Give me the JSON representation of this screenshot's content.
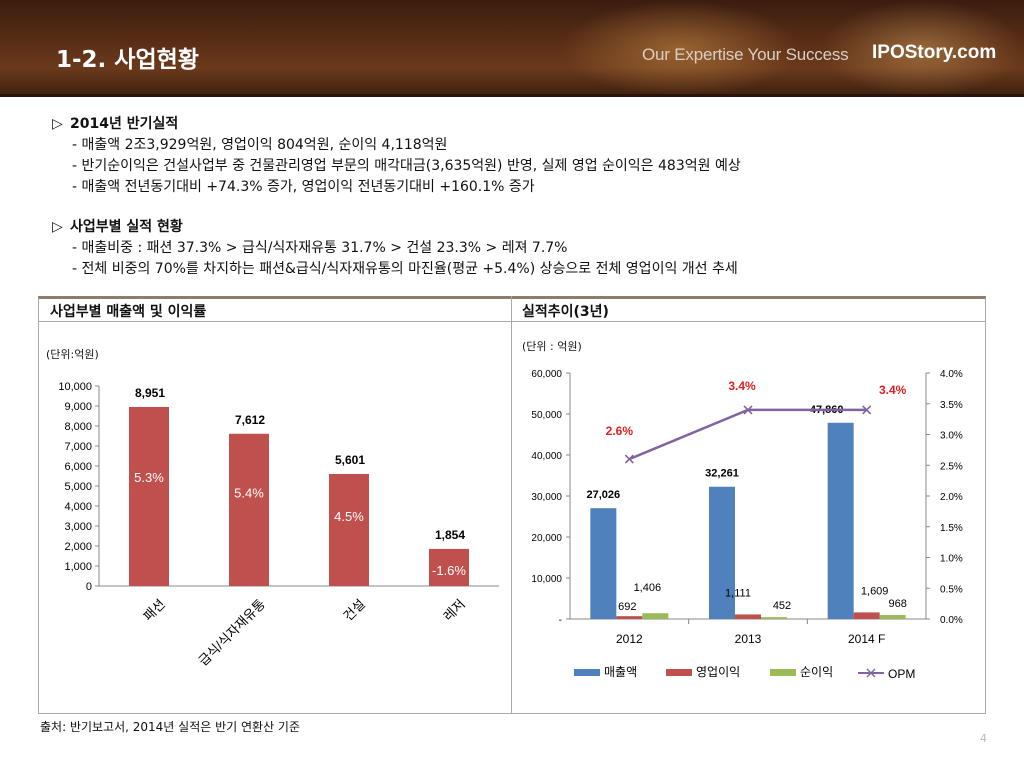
{
  "header": {
    "title": "1-2. 사업현황",
    "slogan": "Our Expertise Your Success",
    "brand": "IPOStory.com"
  },
  "section1": {
    "marker": "▷",
    "heading": "2014년 반기실적",
    "lines": [
      "- 매출액 2조3,929억원, 영업이익 804억원, 순이익 4,118억원",
      "- 반기순이익은 건설사업부 중 건물관리영업 부문의 매각대금(3,635억원) 반영, 실제 영업 순이익은 483억원 예상",
      "- 매출액 전년동기대비 +74.3% 증가, 영업이익 전년동기대비 +160.1% 증가"
    ]
  },
  "section2": {
    "marker": "▷",
    "heading": "사업부별 실적 현황",
    "lines": [
      "- 매출비중 : 패션 37.3% > 급식/식자재유통 31.7% > 건설 23.3% > 레져 7.7%",
      "- 전체 비중의 70%를 차지하는 패션&급식/식자재유통의 마진율(평균 +5.4%) 상승으로 전체 영업이익 개선 추세"
    ]
  },
  "left_panel": {
    "title": "사업부별 매출액 및 이익률",
    "unit": "(단위:억원)"
  },
  "right_panel": {
    "title": "실적추이(3년)",
    "unit": "(단위 : 억원)"
  },
  "footer": {
    "source": "출처: 반기보고서, 2014년 실적은 반기 연환산 기준",
    "page": "4"
  },
  "colors": {
    "bar_red": "#c0504d",
    "bar_blue": "#4f81bd",
    "bar_green": "#9bbb59",
    "line_purple": "#8064a2",
    "label_red": "#e02020"
  },
  "chart_data": [
    {
      "type": "bar",
      "title": "",
      "categories": [
        "패션",
        "급식/식자재유통",
        "건설",
        "레저"
      ],
      "values": [
        8951,
        7612,
        5601,
        1854
      ],
      "value_labels": [
        "8,951",
        "7,612",
        "5,601",
        "1,854"
      ],
      "margin_labels": [
        "5.3%",
        "5.4%",
        "4.5%",
        "-1.6%"
      ],
      "ylim": [
        0,
        10000
      ],
      "yticks": [
        "0",
        "1,000",
        "2,000",
        "3,000",
        "4,000",
        "5,000",
        "6,000",
        "7,000",
        "8,000",
        "9,000",
        "10,000"
      ],
      "grid": false
    },
    {
      "type": "bar",
      "title": "",
      "categories": [
        "2012",
        "2013",
        "2014 F"
      ],
      "series": [
        {
          "name": "매출액",
          "values": [
            27026,
            32261,
            47860
          ],
          "labels": [
            "27,026",
            "32,261",
            "47,860"
          ]
        },
        {
          "name": "영업이익",
          "values": [
            692,
            1111,
            1609
          ],
          "labels": [
            "692",
            "1,111",
            "1,609"
          ]
        },
        {
          "name": "순이익",
          "values": [
            1406,
            452,
            968
          ],
          "labels": [
            "1,406",
            "452",
            "968"
          ]
        }
      ],
      "line_series": {
        "name": "OPM",
        "values": [
          2.6,
          3.4,
          3.4
        ],
        "labels": [
          "2.6%",
          "3.4%",
          "3.4%"
        ],
        "axis": "right"
      },
      "ylim": [
        0,
        60000
      ],
      "yticks": [
        "-",
        "10,000",
        "20,000",
        "30,000",
        "40,000",
        "50,000",
        "60,000"
      ],
      "y2lim": [
        0,
        4.0
      ],
      "y2ticks": [
        "0.0%",
        "0.5%",
        "1.0%",
        "1.5%",
        "2.0%",
        "2.5%",
        "3.0%",
        "3.5%",
        "4.0%"
      ],
      "legend": "bottom",
      "grid": false
    }
  ]
}
